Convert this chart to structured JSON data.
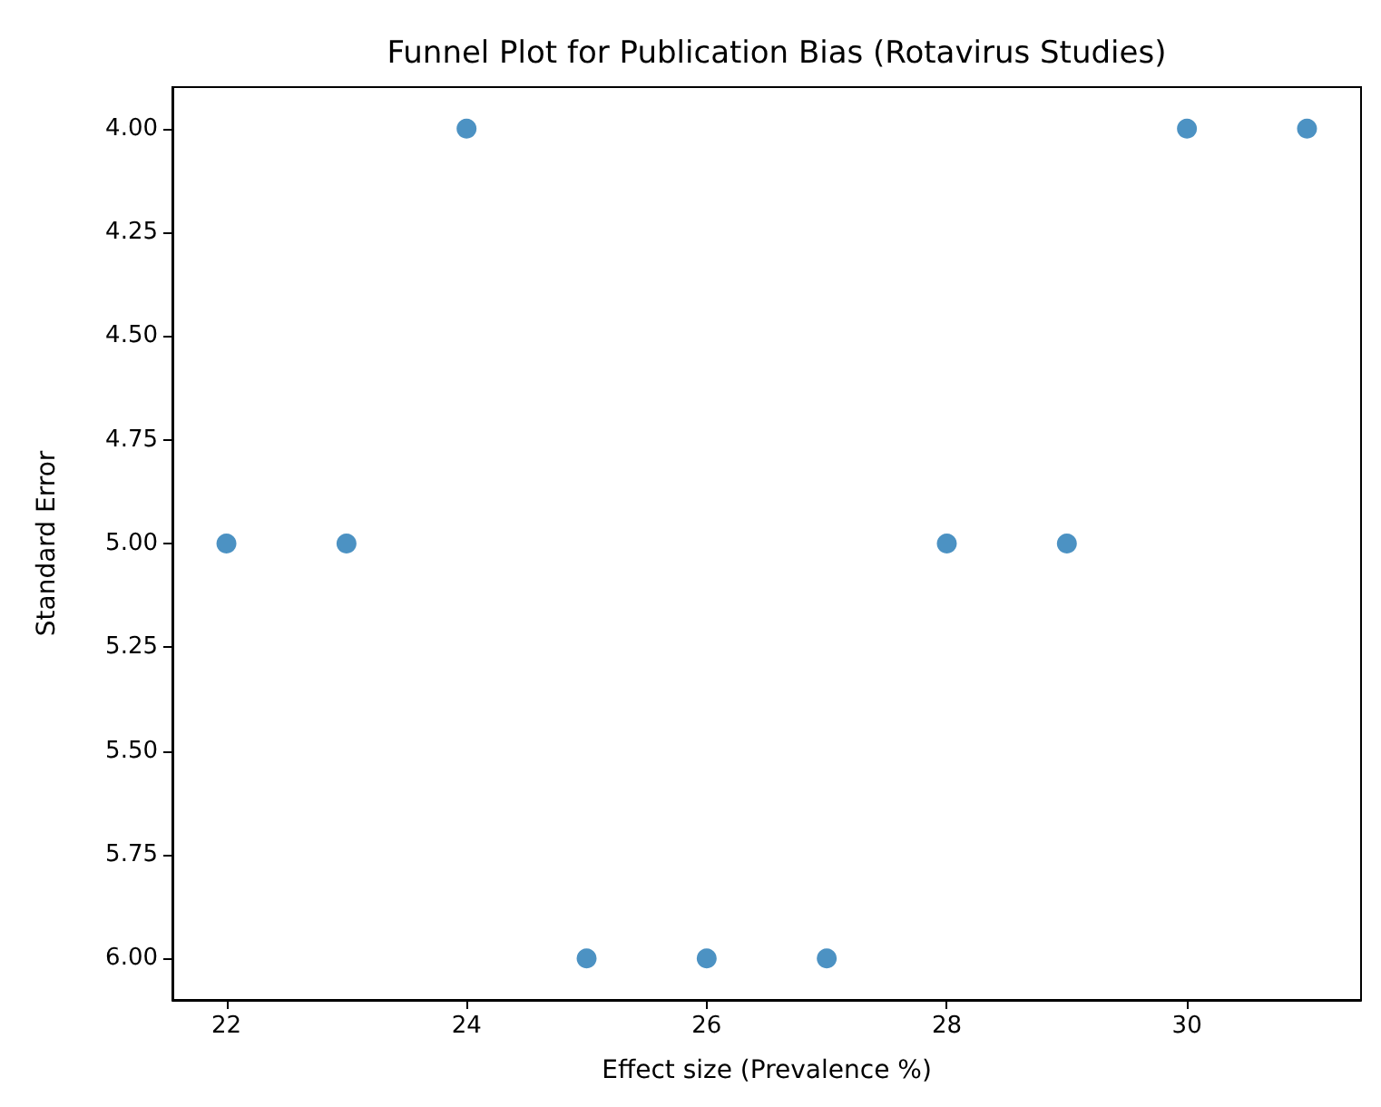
{
  "chart_data": {
    "type": "scatter",
    "title": "Funnel Plot for Publication Bias (Rotavirus Studies)",
    "xlabel": "Effect size (Prevalence %)",
    "ylabel": "Standard Error",
    "x": [
      22,
      23,
      24,
      25,
      26,
      27,
      28,
      29,
      30,
      31
    ],
    "values": [
      5,
      5,
      4,
      6,
      6,
      6,
      5,
      5,
      4,
      4
    ],
    "color": "#1f77b4",
    "marker": "circle",
    "grid": false,
    "xlim": [
      21.55,
      31.45
    ],
    "xticks": [
      22,
      24,
      26,
      28,
      30
    ],
    "ylim": [
      6.1,
      3.9
    ],
    "yticks": [
      {
        "value": 4,
        "label": "4.00"
      },
      {
        "value": 4.25,
        "label": "4.25"
      },
      {
        "value": 4.5,
        "label": "4.50"
      },
      {
        "value": 4.75,
        "label": "4.75"
      },
      {
        "value": 5,
        "label": "5.00"
      },
      {
        "value": 5.25,
        "label": "5.25"
      },
      {
        "value": 5.5,
        "label": "5.50"
      },
      {
        "value": 5.75,
        "label": "5.75"
      },
      {
        "value": 6,
        "label": "6.00"
      }
    ]
  }
}
